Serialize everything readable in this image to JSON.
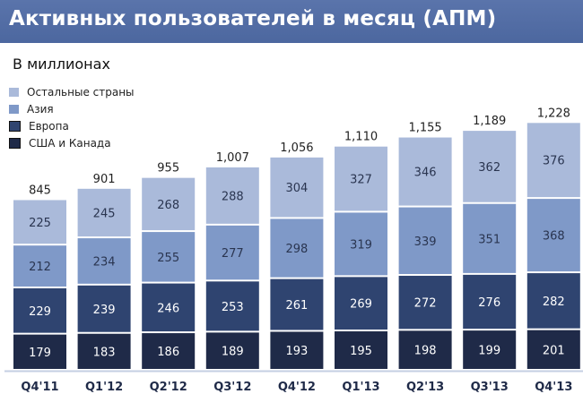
{
  "title": "Активных пользователей в месяц (АПМ)",
  "subtitle": "В миллионах",
  "chart_data": {
    "type": "bar",
    "stacked": true,
    "title": "Активных пользователей в месяц (АПМ)",
    "ylabel": "В миллионах",
    "categories": [
      "Q4'11",
      "Q1'12",
      "Q2'12",
      "Q3'12",
      "Q4'12",
      "Q1'13",
      "Q2'13",
      "Q3'13",
      "Q4'13"
    ],
    "series": [
      {
        "name": "США и Канада",
        "color": "#1f2a48",
        "values": [
          179,
          183,
          186,
          189,
          193,
          195,
          198,
          199,
          201
        ]
      },
      {
        "name": "Европа",
        "color": "#2f4470",
        "values": [
          229,
          239,
          246,
          253,
          261,
          269,
          272,
          276,
          282
        ]
      },
      {
        "name": "Азия",
        "color": "#7f99c8",
        "values": [
          212,
          234,
          255,
          277,
          298,
          319,
          339,
          351,
          368
        ]
      },
      {
        "name": "Остальные страны",
        "color": "#aabada",
        "values": [
          225,
          245,
          268,
          288,
          304,
          327,
          346,
          362,
          376
        ]
      }
    ],
    "totals": [
      "845",
      "901",
      "955",
      "1,007",
      "1,056",
      "1,110",
      "1,155",
      "1,189",
      "1,228"
    ],
    "legend_order": [
      "Остальные страны",
      "Азия",
      "Европа",
      "США и Канада"
    ],
    "legend_position": "top-left"
  }
}
